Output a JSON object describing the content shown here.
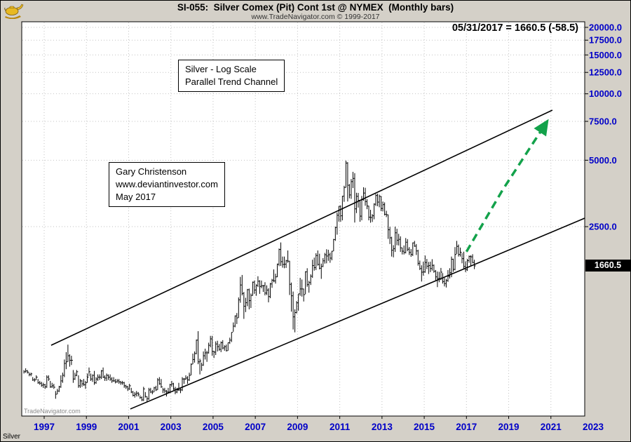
{
  "header": {
    "title": "SI-055:  Silver Comex (Pit) Cont 1st @ NYMEX  (Monthly bars)",
    "subtitle": "www.TradeNavigator.com © 1999-2017",
    "quote_line": "05/31/2017 = 1660.5 (-58.5)"
  },
  "annotation_boxes": {
    "scale_note": [
      "Silver - Log Scale",
      "Parallel Trend Channel"
    ],
    "author_note": [
      "Gary Christenson",
      "www.deviantinvestor.com",
      "May 2017"
    ]
  },
  "labels": {
    "watermark": "TradeNavigator.com",
    "instrument": "Silver",
    "last_price": "1660.5"
  },
  "colors": {
    "axis_label": "#0000c8",
    "bar": "#000000",
    "trend": "#000000",
    "arrow": "#13a24b",
    "grid": "#c2c2c2",
    "background": "#d4d0c8",
    "plot_bg": "#ffffff",
    "last_price_bg": "#000000",
    "last_price_fg": "#ffffff"
  },
  "chart_data": {
    "type": "bar",
    "subtype": "ohlc-monthly-bars-log-scale",
    "title": "SI-055: Silver Comex (Pit) Cont 1st @ NYMEX (Monthly bars)",
    "x_axis": {
      "ticks": [
        1997,
        1999,
        2001,
        2003,
        2005,
        2007,
        2009,
        2011,
        2013,
        2015,
        2017,
        2019,
        2021,
        2023
      ],
      "range": [
        1995.9,
        2023.6
      ]
    },
    "y_axis": {
      "scale": "log",
      "range": [
        350,
        21500
      ],
      "last_price": 1660.5,
      "ticks": [
        {
          "value": 20000,
          "label": "20000.0"
        },
        {
          "value": 17500,
          "label": "17500.0"
        },
        {
          "value": 15000,
          "label": "15000.0"
        },
        {
          "value": 12500,
          "label": "12500.0"
        },
        {
          "value": 10000,
          "label": "10000.0"
        },
        {
          "value": 7500,
          "label": "7500.0"
        },
        {
          "value": 5000,
          "label": "5000.0"
        },
        {
          "value": 2500,
          "label": "2500.0"
        }
      ]
    },
    "series_start": "1996-01",
    "series_freq": "monthly",
    "bars_hlc": [
      [
        560,
        540,
        550
      ],
      [
        570,
        545,
        555
      ],
      [
        560,
        540,
        548
      ],
      [
        545,
        525,
        535
      ],
      [
        545,
        525,
        538
      ],
      [
        520,
        500,
        505
      ],
      [
        515,
        495,
        505
      ],
      [
        530,
        505,
        520
      ],
      [
        510,
        485,
        490
      ],
      [
        500,
        480,
        488
      ],
      [
        495,
        470,
        478
      ],
      [
        490,
        465,
        480
      ],
      [
        485,
        460,
        470
      ],
      [
        530,
        465,
        520
      ],
      [
        530,
        500,
        510
      ],
      [
        500,
        465,
        470
      ],
      [
        490,
        465,
        475
      ],
      [
        485,
        460,
        468
      ],
      [
        450,
        415,
        435
      ],
      [
        460,
        435,
        450
      ],
      [
        475,
        445,
        470
      ],
      [
        530,
        465,
        500
      ],
      [
        545,
        490,
        530
      ],
      [
        625,
        520,
        600
      ],
      [
        675,
        565,
        610
      ],
      [
        730,
        610,
        650
      ],
      [
        660,
        580,
        620
      ],
      [
        650,
        590,
        620
      ],
      [
        560,
        490,
        510
      ],
      [
        545,
        505,
        530
      ],
      [
        560,
        525,
        550
      ],
      [
        530,
        465,
        475
      ],
      [
        510,
        465,
        500
      ],
      [
        505,
        470,
        485
      ],
      [
        510,
        475,
        480
      ],
      [
        500,
        460,
        490
      ],
      [
        540,
        490,
        520
      ],
      [
        575,
        525,
        550
      ],
      [
        540,
        500,
        510
      ],
      [
        535,
        495,
        530
      ],
      [
        555,
        480,
        490
      ],
      [
        520,
        485,
        510
      ],
      [
        535,
        500,
        520
      ],
      [
        535,
        505,
        520
      ],
      [
        560,
        510,
        555
      ],
      [
        575,
        515,
        520
      ],
      [
        530,
        500,
        515
      ],
      [
        540,
        500,
        530
      ],
      [
        535,
        505,
        520
      ],
      [
        535,
        500,
        510
      ],
      [
        520,
        490,
        500
      ],
      [
        520,
        495,
        500
      ],
      [
        510,
        487,
        495
      ],
      [
        510,
        490,
        500
      ],
      [
        510,
        485,
        495
      ],
      [
        500,
        480,
        490
      ],
      [
        500,
        480,
        490
      ],
      [
        495,
        465,
        475
      ],
      [
        480,
        460,
        470
      ],
      [
        475,
        450,
        460
      ],
      [
        485,
        455,
        475
      ],
      [
        465,
        440,
        445
      ],
      [
        450,
        425,
        430
      ],
      [
        445,
        420,
        435
      ],
      [
        450,
        425,
        440
      ],
      [
        445,
        425,
        435
      ],
      [
        430,
        415,
        420
      ],
      [
        425,
        405,
        410
      ],
      [
        470,
        405,
        460
      ],
      [
        445,
        420,
        425
      ],
      [
        425,
        401,
        415
      ],
      [
        465,
        410,
        455
      ],
      [
        465,
        440,
        445
      ],
      [
        455,
        435,
        445
      ],
      [
        470,
        445,
        465
      ],
      [
        475,
        450,
        455
      ],
      [
        515,
        455,
        505
      ],
      [
        520,
        480,
        485
      ],
      [
        510,
        465,
        470
      ],
      [
        465,
        440,
        455
      ],
      [
        465,
        440,
        450
      ],
      [
        455,
        425,
        445
      ],
      [
        465,
        440,
        445
      ],
      [
        485,
        440,
        480
      ],
      [
        500,
        470,
        485
      ],
      [
        490,
        455,
        460
      ],
      [
        470,
        435,
        445
      ],
      [
        465,
        440,
        455
      ],
      [
        490,
        450,
        455
      ],
      [
        465,
        440,
        455
      ],
      [
        520,
        450,
        510
      ],
      [
        515,
        485,
        510
      ],
      [
        530,
        505,
        515
      ],
      [
        525,
        485,
        505
      ],
      [
        545,
        500,
        530
      ],
      [
        600,
        530,
        595
      ],
      [
        665,
        595,
        625
      ],
      [
        680,
        605,
        665
      ],
      [
        770,
        660,
        765
      ],
      [
        840,
        595,
        610
      ],
      [
        630,
        535,
        615
      ],
      [
        605,
        555,
        590
      ],
      [
        680,
        585,
        650
      ],
      [
        700,
        625,
        670
      ],
      [
        685,
        610,
        670
      ],
      [
        745,
        665,
        725
      ],
      [
        800,
        710,
        775
      ],
      [
        800,
        650,
        680
      ],
      [
        685,
        635,
        675
      ],
      [
        755,
        655,
        735
      ],
      [
        760,
        680,
        715
      ],
      [
        735,
        685,
        695
      ],
      [
        755,
        675,
        745
      ],
      [
        765,
        695,
        705
      ],
      [
        725,
        685,
        715
      ],
      [
        730,
        680,
        685
      ],
      [
        745,
        685,
        745
      ],
      [
        785,
        735,
        765
      ],
      [
        830,
        750,
        830
      ],
      [
        920,
        835,
        885
      ],
      [
        990,
        875,
        985
      ],
      [
        1015,
        905,
        965
      ],
      [
        1195,
        965,
        1165
      ],
      [
        1480,
        1130,
        1360
      ],
      [
        1510,
        1220,
        1245
      ],
      [
        1265,
        955,
        1090
      ],
      [
        1190,
        1025,
        1130
      ],
      [
        1305,
        1090,
        1295
      ],
      [
        1310,
        1055,
        1155
      ],
      [
        1245,
        1070,
        1220
      ],
      [
        1410,
        1215,
        1400
      ],
      [
        1425,
        1240,
        1290
      ],
      [
        1370,
        1215,
        1355
      ],
      [
        1490,
        1330,
        1415
      ],
      [
        1430,
        1240,
        1340
      ],
      [
        1425,
        1315,
        1350
      ],
      [
        1360,
        1265,
        1350
      ],
      [
        1400,
        1220,
        1250
      ],
      [
        1355,
        1225,
        1290
      ],
      [
        1315,
        1135,
        1205
      ],
      [
        1390,
        1185,
        1375
      ],
      [
        1450,
        1320,
        1430
      ],
      [
        1600,
        1400,
        1420
      ],
      [
        1530,
        1380,
        1480
      ],
      [
        1700,
        1475,
        1690
      ],
      [
        1990,
        1655,
        1970
      ],
      [
        2120,
        1660,
        1735
      ],
      [
        1830,
        1630,
        1685
      ],
      [
        1830,
        1620,
        1690
      ],
      [
        1770,
        1625,
        1750
      ],
      [
        1950,
        1715,
        1745
      ],
      [
        1750,
        1225,
        1370
      ],
      [
        1395,
        1030,
        1215
      ],
      [
        1270,
        855,
        975
      ],
      [
        1055,
        830,
        1020
      ],
      [
        1150,
        1010,
        1130
      ],
      [
        1240,
        1040,
        1240
      ],
      [
        1465,
        1215,
        1305
      ],
      [
        1440,
        1205,
        1305
      ],
      [
        1310,
        1145,
        1230
      ],
      [
        1570,
        1235,
        1560
      ],
      [
        1620,
        1335,
        1365
      ],
      [
        1420,
        1255,
        1395
      ],
      [
        1520,
        1360,
        1490
      ],
      [
        1770,
        1465,
        1665
      ],
      [
        1810,
        1580,
        1630
      ],
      [
        1895,
        1590,
        1850
      ],
      [
        1950,
        1665,
        1685
      ],
      [
        1885,
        1600,
        1620
      ],
      [
        1700,
        1450,
        1650
      ],
      [
        1800,
        1640,
        1750
      ],
      [
        1900,
        1700,
        1865
      ],
      [
        1975,
        1705,
        1840
      ],
      [
        1965,
        1750,
        1865
      ],
      [
        1905,
        1715,
        1800
      ],
      [
        1940,
        1760,
        1935
      ],
      [
        2200,
        1935,
        2185
      ],
      [
        2500,
        2155,
        2480
      ],
      [
        2900,
        2300,
        2815
      ],
      [
        3100,
        2635,
        3090
      ],
      [
        3120,
        2630,
        2800
      ],
      [
        3450,
        2670,
        3435
      ],
      [
        3830,
        3240,
        3760
      ],
      [
        4980,
        3755,
        4855
      ],
      [
        4900,
        3250,
        3850
      ],
      [
        3900,
        3360,
        3480
      ],
      [
        4110,
        3340,
        4000
      ],
      [
        4430,
        3740,
        4135
      ],
      [
        4370,
        2610,
        3010
      ],
      [
        3560,
        2880,
        3430
      ],
      [
        3555,
        3050,
        3290
      ],
      [
        3300,
        2630,
        2790
      ],
      [
        3445,
        2670,
        3310
      ],
      [
        3770,
        3280,
        3550
      ],
      [
        3750,
        3110,
        3250
      ],
      [
        3330,
        3000,
        3100
      ],
      [
        3110,
        2670,
        2760
      ],
      [
        2980,
        2605,
        2750
      ],
      [
        2850,
        2625,
        2800
      ],
      [
        3190,
        2700,
        3160
      ],
      [
        3520,
        3100,
        3460
      ],
      [
        3530,
        3095,
        3230
      ],
      [
        3490,
        3060,
        3430
      ],
      [
        3440,
        2940,
        3020
      ],
      [
        3250,
        2930,
        3145
      ],
      [
        3220,
        2810,
        2845
      ],
      [
        2950,
        2760,
        2830
      ],
      [
        2840,
        2200,
        2420
      ],
      [
        2495,
        2085,
        2225
      ],
      [
        2250,
        1830,
        1955
      ],
      [
        2060,
        1815,
        1985
      ],
      [
        2500,
        1920,
        2345
      ],
      [
        2445,
        2060,
        2170
      ],
      [
        2320,
        2055,
        2190
      ],
      [
        2260,
        1920,
        2005
      ],
      [
        2010,
        1870,
        1935
      ],
      [
        2055,
        1870,
        1910
      ],
      [
        2220,
        1890,
        2125
      ],
      [
        2195,
        1935,
        1975
      ],
      [
        2020,
        1860,
        1910
      ],
      [
        1980,
        1825,
        1870
      ],
      [
        2120,
        1840,
        2110
      ],
      [
        2155,
        2025,
        2040
      ],
      [
        2085,
        1860,
        1940
      ],
      [
        1965,
        1665,
        1705
      ],
      [
        1755,
        1590,
        1615
      ],
      [
        1670,
        1410,
        1555
      ],
      [
        1735,
        1500,
        1560
      ],
      [
        1850,
        1545,
        1720
      ],
      [
        1785,
        1605,
        1655
      ],
      [
        1730,
        1525,
        1665
      ],
      [
        1735,
        1555,
        1615
      ],
      [
        1780,
        1580,
        1670
      ],
      [
        1685,
        1545,
        1570
      ],
      [
        1590,
        1430,
        1480
      ],
      [
        1565,
        1330,
        1455
      ],
      [
        1560,
        1400,
        1455
      ],
      [
        1625,
        1430,
        1555
      ],
      [
        1540,
        1380,
        1410
      ],
      [
        1465,
        1340,
        1380
      ],
      [
        1450,
        1325,
        1425
      ],
      [
        1590,
        1405,
        1490
      ],
      [
        1620,
        1455,
        1545
      ],
      [
        1830,
        1475,
        1780
      ],
      [
        1790,
        1560,
        1600
      ],
      [
        2020,
        1585,
        1870
      ],
      [
        2155,
        1880,
        2035
      ],
      [
        2075,
        1830,
        1870
      ],
      [
        2010,
        1830,
        1915
      ],
      [
        1900,
        1705,
        1790
      ],
      [
        1925,
        1615,
        1650
      ],
      [
        1740,
        1555,
        1595
      ],
      [
        1785,
        1575,
        1755
      ],
      [
        1850,
        1715,
        1830
      ],
      [
        1855,
        1665,
        1825
      ],
      [
        1875,
        1705,
        1720
      ],
      [
        1770,
        1605,
        1660.5
      ]
    ],
    "trend_channel": {
      "upper": {
        "from": [
          1997.33,
          725
        ],
        "to": [
          2021.07,
          8430
        ]
      },
      "lower": {
        "from": [
          2001.08,
          373
        ],
        "to": [
          2022.6,
          2730
        ]
      }
    },
    "projection_arrow": {
      "points": [
        [
          2017.0,
          1925
        ],
        [
          2018.7,
          3650
        ],
        [
          2020.8,
          7440
        ]
      ]
    }
  }
}
